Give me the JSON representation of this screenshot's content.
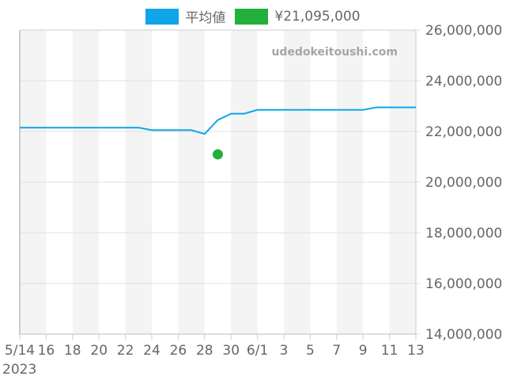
{
  "legend": {
    "items": [
      {
        "label": "平均値",
        "color": "#0ea5e9"
      },
      {
        "label": "¥21,095,000",
        "color": "#22b03a"
      }
    ]
  },
  "watermark": "udedokeitoushi.com",
  "chart_data": {
    "type": "line",
    "title": "",
    "xlabel": "",
    "ylabel": "",
    "x_tick_labels": [
      "5/14",
      "16",
      "18",
      "20",
      "22",
      "24",
      "26",
      "28",
      "30",
      "6/1",
      "3",
      "5",
      "7",
      "9",
      "11",
      "13"
    ],
    "x_year_label": "2023",
    "y_tick_labels": [
      "14,000,000",
      "16,000,000",
      "18,000,000",
      "20,000,000",
      "22,000,000",
      "24,000,000",
      "26,000,000"
    ],
    "ylim": [
      14000000,
      26000000
    ],
    "x": [
      "5/14",
      "5/15",
      "5/16",
      "5/17",
      "5/18",
      "5/19",
      "5/20",
      "5/21",
      "5/22",
      "5/23",
      "5/24",
      "5/25",
      "5/26",
      "5/27",
      "5/28",
      "5/29",
      "5/30",
      "5/31",
      "6/1",
      "6/2",
      "6/3",
      "6/4",
      "6/5",
      "6/6",
      "6/7",
      "6/8",
      "6/9",
      "6/10",
      "6/11",
      "6/12",
      "6/13"
    ],
    "series": [
      {
        "name": "平均値",
        "type": "line",
        "color": "#0ea5e9",
        "values": [
          22150000,
          22150000,
          22150000,
          22150000,
          22150000,
          22150000,
          22150000,
          22150000,
          22150000,
          22150000,
          22050000,
          22050000,
          22050000,
          22050000,
          21900000,
          22450000,
          22700000,
          22700000,
          22850000,
          22850000,
          22850000,
          22850000,
          22850000,
          22850000,
          22850000,
          22850000,
          22850000,
          22950000,
          22950000,
          22950000,
          22950000
        ]
      },
      {
        "name": "¥21,095,000",
        "type": "scatter",
        "color": "#22b03a",
        "points": [
          {
            "x": "5/29",
            "y": 21095000
          }
        ]
      }
    ],
    "grid": true,
    "legend_position": "top"
  }
}
